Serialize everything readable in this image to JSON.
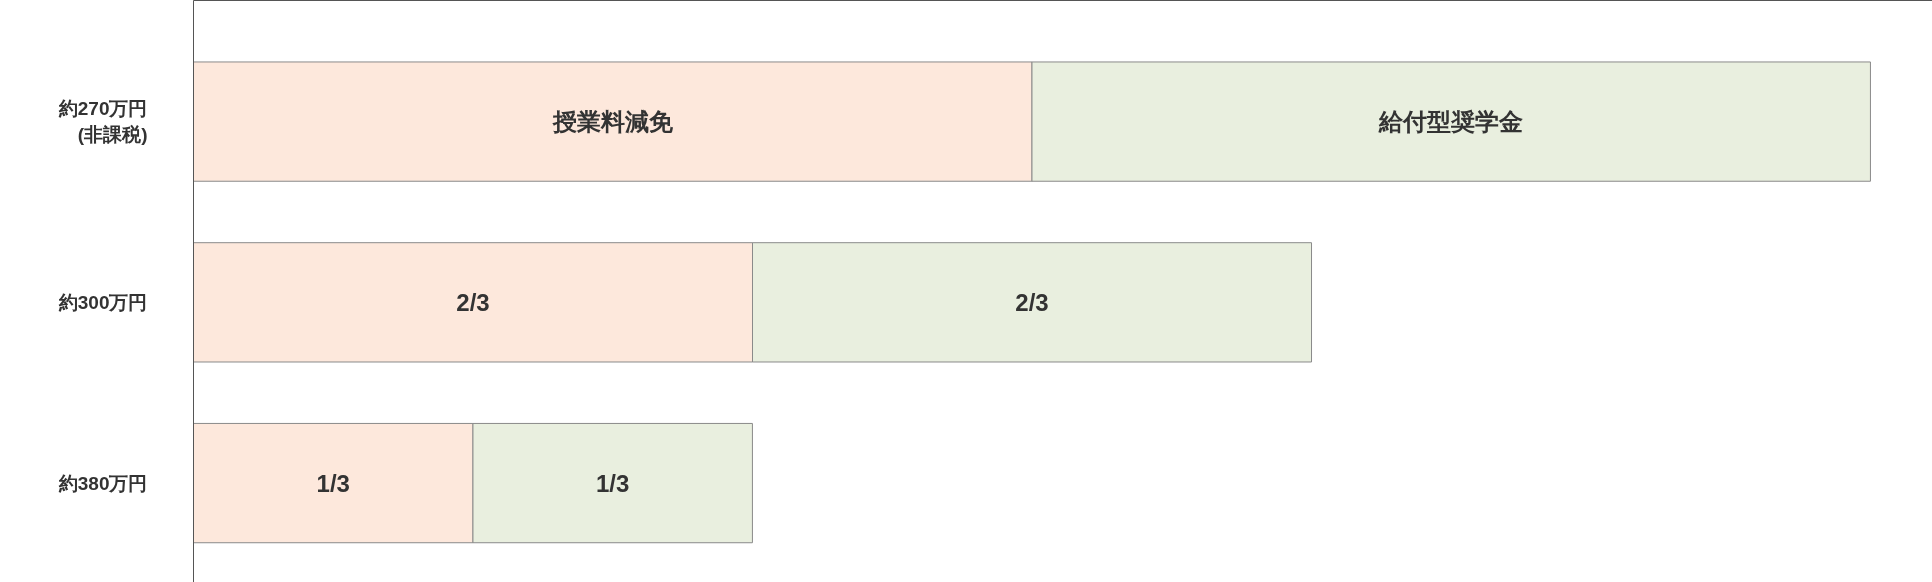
{
  "chart_data": {
    "type": "bar",
    "orientation": "horizontal",
    "stacked": true,
    "tick_labels": "y",
    "categories": [
      "約270万円\n(非課税)",
      "約300万円",
      "約380万円"
    ],
    "series": [
      {
        "color": "#fde8dc",
        "values": [
          1,
          0.6667,
          0.3333
        ],
        "value_labels": [
          "授業料減免",
          "2/3",
          "1/3"
        ]
      },
      {
        "color": "#e9efdf",
        "values": [
          1,
          0.6667,
          0.3333
        ],
        "value_labels": [
          "給付型奨学金",
          "2/3",
          "1/3"
        ]
      }
    ],
    "grid": false
  }
}
